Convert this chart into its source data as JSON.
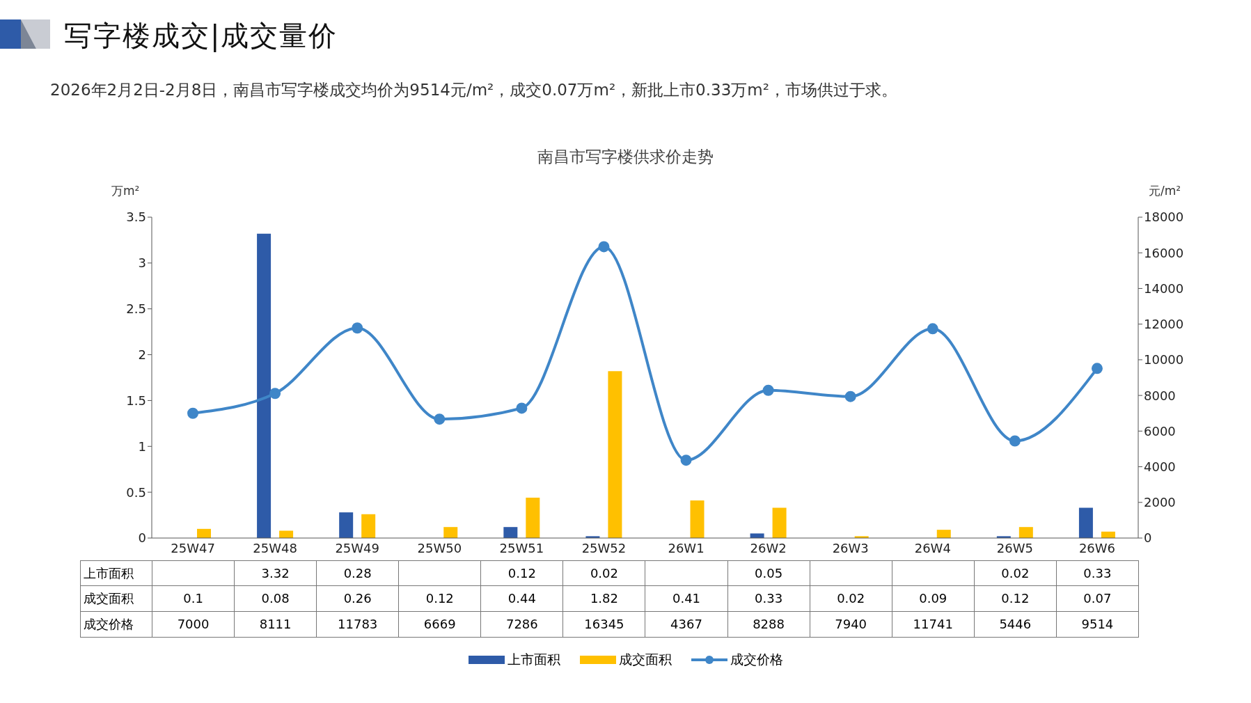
{
  "chart_data": {
    "type": "bar",
    "title": "写字楼成交|成交量价",
    "subtitle": "2026年2月2日-2月8日，南昌市写字楼成交均价为9514元/m²，成交0.07万m²，新批上市0.33万m²，市场供过于求。",
    "annotations": [
      "南昌市写字楼供求价走势"
    ],
    "ylabel": "万m²",
    "y2label": "元/m²",
    "categories": [
      "25W47",
      "25W48",
      "25W49",
      "25W50",
      "25W51",
      "25W52",
      "26W1",
      "26W2",
      "26W3",
      "26W4",
      "26W5",
      "26W6"
    ],
    "series": [
      {
        "name": "上市面积",
        "color": "#2e5ba8",
        "values": [
          null,
          3.32,
          0.28,
          null,
          0.12,
          0.02,
          null,
          0.05,
          null,
          null,
          0.02,
          0.33
        ]
      },
      {
        "name": "成交面积",
        "color": "#ffc000",
        "values": [
          0.1,
          0.08,
          0.26,
          0.12,
          0.44,
          1.82,
          0.41,
          0.33,
          0.02,
          0.09,
          0.12,
          0.07
        ]
      },
      {
        "name": "成交价格",
        "type": "line",
        "axis": "y2",
        "color": "#3f86c8",
        "values": [
          7000,
          8111,
          11783,
          6669,
          7286,
          16345,
          4367,
          8288,
          7940,
          11741,
          5446,
          9514
        ]
      }
    ],
    "ylim": [
      0,
      3.5
    ],
    "yticks": [
      0,
      0.5,
      1,
      1.5,
      2,
      2.5,
      3,
      3.5
    ],
    "y2lim": [
      0,
      18000
    ],
    "y2ticks": [
      0,
      2000,
      4000,
      6000,
      8000,
      10000,
      12000,
      14000,
      16000,
      18000
    ],
    "grid": false,
    "legend": "bottom",
    "marker": "circle",
    "line_style": "solid",
    "data_labels": true
  }
}
